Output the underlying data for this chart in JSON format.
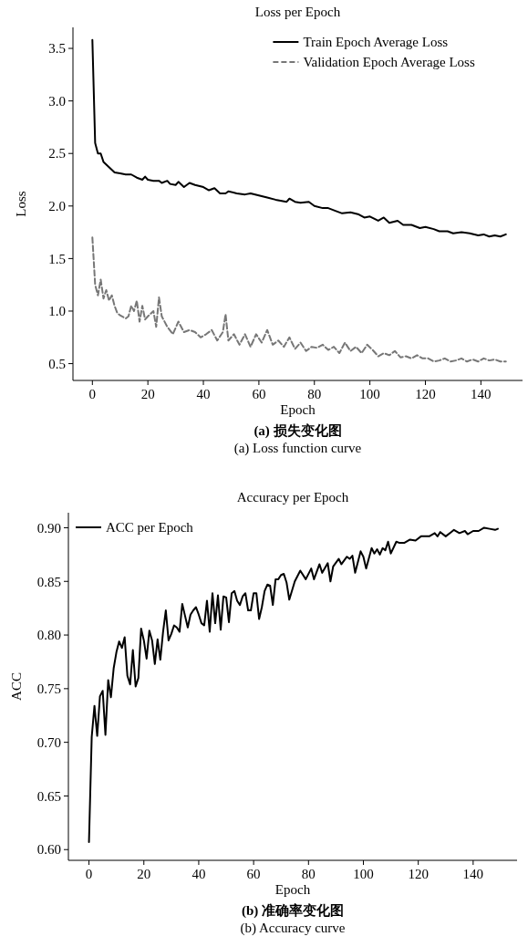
{
  "chart_data": [
    {
      "type": "line",
      "title": "Loss per Epoch",
      "xlabel": "Epoch",
      "ylabel": "Loss",
      "annotations": [
        "(a) 损失变化图",
        "(a) Loss function curve"
      ],
      "xlim": [
        -7,
        155
      ],
      "ylim": [
        0.34,
        3.7
      ],
      "xticks": [
        0,
        20,
        40,
        60,
        80,
        100,
        120,
        140
      ],
      "yticks": [
        0.5,
        {
          "value": 1,
          "label": "1.0"
        },
        1.5,
        {
          "value": 2,
          "label": "2.0"
        },
        2.5,
        {
          "value": 3,
          "label": "3.0"
        },
        3.5
      ],
      "legend": "top right",
      "grid": false,
      "series": [
        {
          "name": "Train Epoch Average Loss",
          "color": "#000000",
          "line_style": "solid",
          "x": [
            0,
            1,
            2,
            3,
            4,
            6,
            8,
            10,
            12,
            14,
            16,
            18,
            19,
            20,
            22,
            24,
            25,
            27,
            28,
            30,
            31,
            33,
            35,
            37,
            40,
            42,
            44,
            46,
            48,
            49,
            52,
            55,
            57,
            60,
            63,
            66,
            70,
            71,
            73,
            75,
            78,
            80,
            83,
            85,
            88,
            90,
            93,
            96,
            98,
            100,
            103,
            105,
            107,
            110,
            112,
            115,
            118,
            120,
            123,
            125,
            128,
            130,
            133,
            136,
            139,
            141,
            143,
            145,
            147,
            149
          ],
          "values": [
            3.58,
            2.6,
            2.5,
            2.5,
            2.42,
            2.37,
            2.32,
            2.31,
            2.3,
            2.3,
            2.27,
            2.25,
            2.28,
            2.25,
            2.24,
            2.24,
            2.22,
            2.24,
            2.21,
            2.2,
            2.23,
            2.18,
            2.22,
            2.2,
            2.18,
            2.15,
            2.17,
            2.12,
            2.12,
            2.14,
            2.12,
            2.11,
            2.12,
            2.1,
            2.08,
            2.06,
            2.04,
            2.07,
            2.04,
            2.03,
            2.04,
            2.0,
            1.98,
            1.98,
            1.95,
            1.93,
            1.94,
            1.92,
            1.89,
            1.9,
            1.86,
            1.89,
            1.84,
            1.86,
            1.82,
            1.82,
            1.79,
            1.8,
            1.78,
            1.76,
            1.76,
            1.74,
            1.75,
            1.74,
            1.72,
            1.73,
            1.71,
            1.72,
            1.71,
            1.73
          ]
        },
        {
          "name": "Validation Epoch Average Loss",
          "color": "#777777",
          "line_style": "dashed",
          "x": [
            0,
            1,
            2,
            3,
            4,
            5,
            6,
            7,
            8,
            9,
            10,
            12,
            13,
            14,
            15,
            16,
            17,
            18,
            19,
            20,
            22,
            23,
            24,
            25,
            27,
            29,
            31,
            33,
            35,
            37,
            39,
            41,
            43,
            45,
            47,
            48,
            49,
            51,
            53,
            55,
            57,
            59,
            61,
            63,
            65,
            67,
            69,
            71,
            73,
            75,
            77,
            79,
            81,
            83,
            85,
            87,
            89,
            91,
            93,
            95,
            97,
            99,
            101,
            103,
            105,
            107,
            109,
            111,
            113,
            115,
            117,
            119,
            121,
            123,
            125,
            127,
            129,
            131,
            133,
            135,
            137,
            139,
            141,
            143,
            145,
            147,
            149
          ],
          "values": [
            1.7,
            1.25,
            1.15,
            1.3,
            1.12,
            1.2,
            1.1,
            1.15,
            1.05,
            0.98,
            0.96,
            0.93,
            0.95,
            1.05,
            1.0,
            1.1,
            0.9,
            1.05,
            0.92,
            0.95,
            1.0,
            0.85,
            1.13,
            0.95,
            0.85,
            0.78,
            0.9,
            0.8,
            0.82,
            0.8,
            0.75,
            0.78,
            0.82,
            0.72,
            0.8,
            0.97,
            0.72,
            0.78,
            0.68,
            0.78,
            0.66,
            0.78,
            0.7,
            0.82,
            0.68,
            0.72,
            0.66,
            0.75,
            0.64,
            0.7,
            0.62,
            0.66,
            0.65,
            0.68,
            0.63,
            0.66,
            0.6,
            0.7,
            0.62,
            0.66,
            0.6,
            0.68,
            0.63,
            0.57,
            0.6,
            0.58,
            0.62,
            0.56,
            0.57,
            0.55,
            0.58,
            0.55,
            0.55,
            0.52,
            0.53,
            0.55,
            0.52,
            0.53,
            0.55,
            0.52,
            0.54,
            0.52,
            0.55,
            0.53,
            0.54,
            0.52,
            0.52
          ]
        }
      ]
    },
    {
      "type": "line",
      "title": "Accuracy per Epoch",
      "xlabel": "Epoch",
      "ylabel": "ACC",
      "annotations": [
        "(b) 准确率变化图",
        "(b) Accuracy curve"
      ],
      "xlim": [
        -7.5,
        156
      ],
      "ylim": [
        0.59,
        0.914
      ],
      "xticks": [
        0,
        20,
        40,
        60,
        80,
        100,
        120,
        140
      ],
      "yticks": [
        {
          "value": 0.6,
          "label": "0.60"
        },
        0.65,
        {
          "value": 0.7,
          "label": "0.70"
        },
        0.75,
        {
          "value": 0.8,
          "label": "0.80"
        },
        0.85,
        {
          "value": 0.9,
          "label": "0.90"
        }
      ],
      "legend": "top left",
      "grid": false,
      "series": [
        {
          "name": "ACC per Epoch",
          "color": "#000000",
          "line_style": "solid",
          "x": [
            0,
            1,
            2,
            3,
            4,
            5,
            6,
            7,
            8,
            9,
            10,
            11,
            12,
            13,
            14,
            15,
            16,
            17,
            18,
            19,
            20,
            21,
            22,
            23,
            24,
            25,
            26,
            27,
            28,
            29,
            30,
            31,
            32,
            33,
            34,
            35,
            36,
            37,
            38,
            39,
            40,
            41,
            42,
            43,
            44,
            45,
            46,
            47,
            48,
            49,
            50,
            51,
            52,
            53,
            54,
            55,
            56,
            57,
            58,
            59,
            60,
            61,
            62,
            63,
            64,
            65,
            66,
            67,
            68,
            69,
            70,
            71,
            72,
            73,
            75,
            77,
            79,
            81,
            82,
            84,
            85,
            87,
            88,
            89,
            91,
            92,
            94,
            95,
            96,
            97,
            99,
            100,
            101,
            103,
            104,
            105,
            106,
            107,
            108,
            109,
            110,
            112,
            113,
            115,
            117,
            119,
            121,
            124,
            126,
            127,
            128,
            130,
            132,
            133,
            135,
            137,
            138,
            140,
            142,
            144,
            146,
            148,
            149
          ],
          "values": [
            0.607,
            0.705,
            0.734,
            0.706,
            0.743,
            0.748,
            0.707,
            0.758,
            0.742,
            0.769,
            0.784,
            0.794,
            0.788,
            0.798,
            0.762,
            0.754,
            0.786,
            0.752,
            0.76,
            0.806,
            0.795,
            0.778,
            0.804,
            0.795,
            0.773,
            0.796,
            0.777,
            0.803,
            0.823,
            0.795,
            0.801,
            0.809,
            0.807,
            0.803,
            0.829,
            0.818,
            0.807,
            0.819,
            0.823,
            0.826,
            0.819,
            0.811,
            0.809,
            0.832,
            0.803,
            0.839,
            0.811,
            0.837,
            0.805,
            0.836,
            0.835,
            0.812,
            0.839,
            0.841,
            0.832,
            0.828,
            0.836,
            0.839,
            0.823,
            0.823,
            0.839,
            0.839,
            0.815,
            0.826,
            0.841,
            0.847,
            0.846,
            0.828,
            0.852,
            0.852,
            0.856,
            0.857,
            0.849,
            0.833,
            0.85,
            0.86,
            0.852,
            0.862,
            0.852,
            0.866,
            0.858,
            0.867,
            0.85,
            0.864,
            0.871,
            0.866,
            0.873,
            0.871,
            0.874,
            0.858,
            0.878,
            0.873,
            0.862,
            0.881,
            0.876,
            0.88,
            0.875,
            0.881,
            0.879,
            0.887,
            0.876,
            0.887,
            0.886,
            0.886,
            0.889,
            0.888,
            0.892,
            0.892,
            0.895,
            0.892,
            0.896,
            0.892,
            0.896,
            0.898,
            0.895,
            0.897,
            0.894,
            0.897,
            0.897,
            0.9,
            0.899,
            0.898,
            0.899
          ]
        }
      ]
    }
  ]
}
